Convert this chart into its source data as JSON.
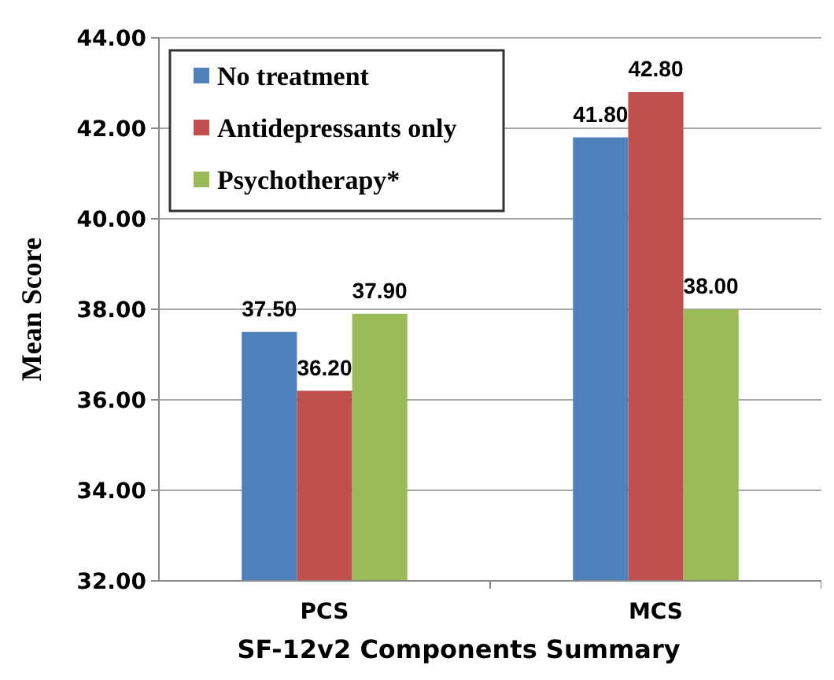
{
  "chart_data": {
    "type": "bar",
    "xlabel": "SF-12v2 Components Summary",
    "ylabel": "Mean Score",
    "categories": [
      "PCS",
      "MCS"
    ],
    "series": [
      {
        "name": "No treatment",
        "color": "#4f81bd",
        "values": [
          37.5,
          41.8
        ],
        "value_labels": [
          "37.50",
          "41.80"
        ]
      },
      {
        "name": "Antidepressants only",
        "color": "#c0504d",
        "values": [
          36.2,
          42.8
        ],
        "value_labels": [
          "36.20",
          "42.80"
        ]
      },
      {
        "name": "Psychotherapy*",
        "color": "#9bbb59",
        "values": [
          37.9,
          38.0
        ],
        "value_labels": [
          "37.90",
          "38.00"
        ]
      }
    ],
    "ylim": [
      32,
      44
    ],
    "yticks": [
      {
        "value": 32,
        "label": "32.00"
      },
      {
        "value": 34,
        "label": "34.00"
      },
      {
        "value": 36,
        "label": "36.00"
      },
      {
        "value": 38,
        "label": "38.00"
      },
      {
        "value": 40,
        "label": "40.00"
      },
      {
        "value": 42,
        "label": "42.00"
      },
      {
        "value": 44,
        "label": "44.00"
      }
    ],
    "grid": "y",
    "legend": "top left"
  }
}
